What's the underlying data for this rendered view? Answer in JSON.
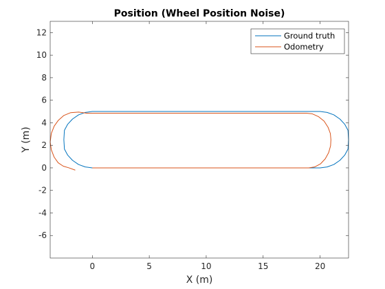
{
  "chart_data": {
    "type": "line",
    "title": "Position (Wheel Position Noise)",
    "xlabel": "X (m)",
    "ylabel": "Y (m)",
    "xlim": [
      -3.7,
      22.5
    ],
    "ylim": [
      -8,
      13
    ],
    "xticks": [
      0,
      5,
      10,
      15,
      20
    ],
    "yticks": [
      -6,
      -4,
      -2,
      0,
      2,
      4,
      6,
      8,
      10,
      12
    ],
    "grid": false,
    "legend_position": "top-right",
    "series": [
      {
        "name": "Ground truth",
        "color": "#0072BD",
        "x": [
          0,
          20,
          20.62,
          21.21,
          21.74,
          22.17,
          22.45,
          22.5,
          22.45,
          22.17,
          21.74,
          21.21,
          20.62,
          20,
          0,
          -0.62,
          -1.21,
          -1.74,
          -2.17,
          -2.45,
          -2.5,
          -2.45,
          -2.17,
          -1.74,
          -1.21,
          -0.62,
          0
        ],
        "y": [
          0,
          0,
          0.08,
          0.3,
          0.67,
          1.14,
          1.67,
          2.5,
          3.33,
          3.86,
          4.33,
          4.7,
          4.92,
          5,
          5,
          4.92,
          4.7,
          4.33,
          3.86,
          3.33,
          2.5,
          1.67,
          1.14,
          0.67,
          0.3,
          0.08,
          0
        ]
      },
      {
        "name": "Odometry",
        "color": "#D95319",
        "x": [
          0,
          19,
          19.52,
          20.03,
          20.45,
          20.75,
          20.92,
          20.95,
          20.9,
          20.7,
          20.35,
          19.85,
          19.3,
          18.8,
          -0.5,
          -1.2,
          -1.9,
          -2.5,
          -3.0,
          -3.35,
          -3.6,
          -3.7,
          -3.6,
          -3.35,
          -3.0,
          -2.55,
          -2.05,
          -1.5
        ],
        "y": [
          0,
          0,
          0.08,
          0.35,
          0.8,
          1.35,
          1.95,
          2.5,
          3.05,
          3.6,
          4.15,
          4.55,
          4.8,
          4.85,
          4.85,
          4.95,
          4.9,
          4.65,
          4.2,
          3.7,
          3.05,
          2.3,
          1.6,
          0.95,
          0.45,
          0.15,
          0.0,
          -0.2
        ]
      }
    ]
  }
}
